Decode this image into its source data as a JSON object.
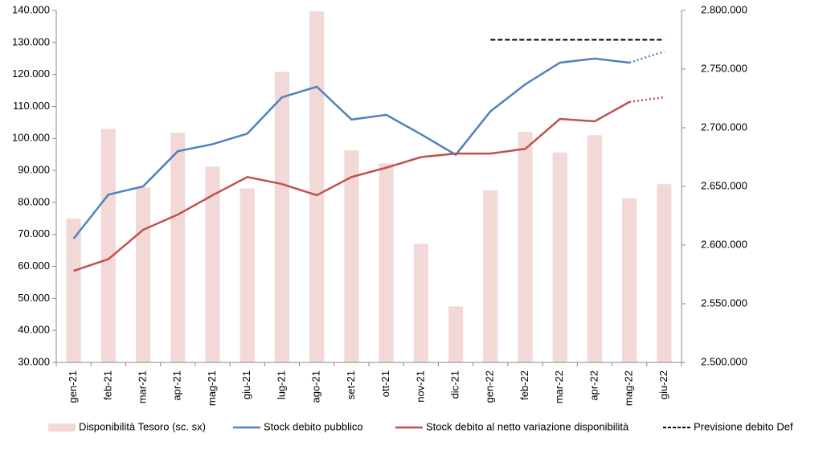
{
  "chart_data": {
    "type": "bar_line",
    "categories": [
      "gen-21",
      "feb-21",
      "mar-21",
      "apr-21",
      "mag-21",
      "giu-21",
      "lug-21",
      "ago-21",
      "set-21",
      "ott-21",
      "nov-21",
      "dic-21",
      "gen-22",
      "feb-22",
      "mar-22",
      "apr-22",
      "mag-22",
      "giu-22"
    ],
    "series": [
      {
        "name": "Disponibilità Tesoro (sc. sx)",
        "type": "bar",
        "color": "#f2d9d8",
        "axis": "y",
        "values": [
          75000,
          103000,
          84700,
          101800,
          91200,
          84400,
          120800,
          139700,
          96300,
          92200,
          67100,
          47500,
          83800,
          102100,
          95600,
          101000,
          81300,
          85700
        ]
      },
      {
        "name": "Stock debito pubblico",
        "type": "line",
        "color": "#4f81bd",
        "axis": "y2",
        "style": "solid",
        "dotted_after": "mag-22",
        "values": [
          2605500,
          2643000,
          2650000,
          2680000,
          2686000,
          2695000,
          2726000,
          2735000,
          2707000,
          2711000,
          2694500,
          2677000,
          2714000,
          2737000,
          2755500,
          2759000,
          2755500,
          2765000
        ]
      },
      {
        "name": "Stock debito al netto variazione disponibilità",
        "type": "line",
        "color": "#c0504d",
        "axis": "y2",
        "style": "solid",
        "dotted_after": "mag-22",
        "values": [
          2578000,
          2588000,
          2613000,
          2626000,
          2642500,
          2658000,
          2652000,
          2642500,
          2658000,
          2666000,
          2675000,
          2678000,
          2678000,
          2682000,
          2707500,
          2705500,
          2722000,
          2726000
        ]
      },
      {
        "name": "Previsione debito Def",
        "type": "line",
        "color": "#000000",
        "axis": "y2",
        "style": "dashed",
        "values": [
          null,
          null,
          null,
          null,
          null,
          null,
          null,
          null,
          null,
          null,
          null,
          null,
          2775000,
          2775000,
          2775000,
          2775000,
          2775000,
          2775000
        ]
      }
    ],
    "ylim": [
      30000,
      140000
    ],
    "yticks": [
      {
        "value": 30000,
        "label": "30.000"
      },
      {
        "value": 40000,
        "label": "40.000"
      },
      {
        "value": 50000,
        "label": "50.000"
      },
      {
        "value": 60000,
        "label": "60.000"
      },
      {
        "value": 70000,
        "label": "70.000"
      },
      {
        "value": 80000,
        "label": "80.000"
      },
      {
        "value": 90000,
        "label": "90.000"
      },
      {
        "value": 100000,
        "label": "100.000"
      },
      {
        "value": 110000,
        "label": "110.000"
      },
      {
        "value": 120000,
        "label": "120.000"
      },
      {
        "value": 130000,
        "label": "130.000"
      },
      {
        "value": 140000,
        "label": "140.000"
      }
    ],
    "y2lim": [
      2500000,
      2800000
    ],
    "y2ticks": [
      {
        "value": 2500000,
        "label": "2.500.000"
      },
      {
        "value": 2550000,
        "label": "2.550.000"
      },
      {
        "value": 2600000,
        "label": "2.600.000"
      },
      {
        "value": 2650000,
        "label": "2.650.000"
      },
      {
        "value": 2700000,
        "label": "2.700.000"
      },
      {
        "value": 2750000,
        "label": "2.750.000"
      },
      {
        "value": 2800000,
        "label": "2.800.000"
      }
    ],
    "legend": "bottom"
  }
}
